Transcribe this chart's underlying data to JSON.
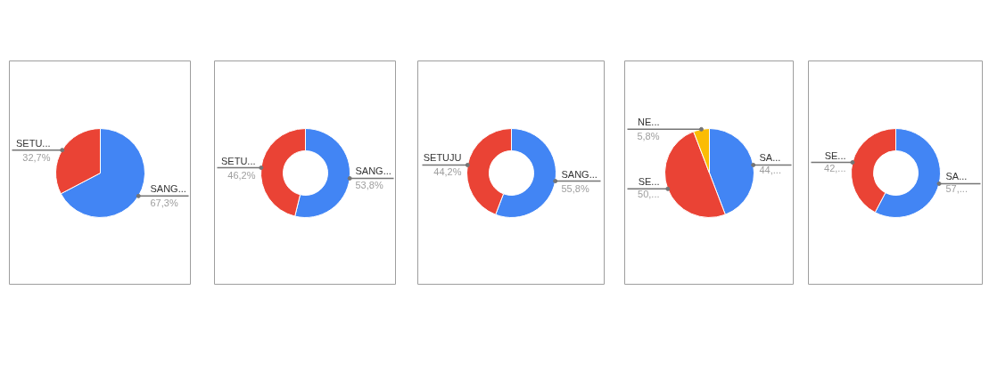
{
  "chart_data": [
    {
      "type": "pie",
      "categories": [
        "SANG...",
        "SETU..."
      ],
      "values": [
        67.3,
        32.7
      ],
      "colors": [
        "#4285f4",
        "#ea4335"
      ],
      "value_labels": [
        "67,3%",
        "32,7%"
      ]
    },
    {
      "type": "donut",
      "categories": [
        "SANG...",
        "SETU..."
      ],
      "values": [
        53.8,
        46.2
      ],
      "colors": [
        "#4285f4",
        "#ea4335"
      ],
      "value_labels": [
        "53,8%",
        "46,2%"
      ]
    },
    {
      "type": "donut",
      "categories": [
        "SANG...",
        "SETUJU"
      ],
      "values": [
        55.8,
        44.2
      ],
      "colors": [
        "#4285f4",
        "#ea4335"
      ],
      "value_labels": [
        "55,8%",
        "44,2%"
      ]
    },
    {
      "type": "pie",
      "categories": [
        "SA...",
        "SE...",
        "NE..."
      ],
      "values": [
        44.2,
        50.0,
        5.8
      ],
      "colors": [
        "#4285f4",
        "#ea4335",
        "#fbbc04"
      ],
      "value_labels": [
        "44,...",
        "50,...",
        "5,8%"
      ]
    },
    {
      "type": "donut",
      "categories": [
        "SA...",
        "SE..."
      ],
      "values": [
        57.7,
        42.3
      ],
      "colors": [
        "#4285f4",
        "#ea4335"
      ],
      "value_labels": [
        "57,...",
        "42,..."
      ]
    }
  ]
}
